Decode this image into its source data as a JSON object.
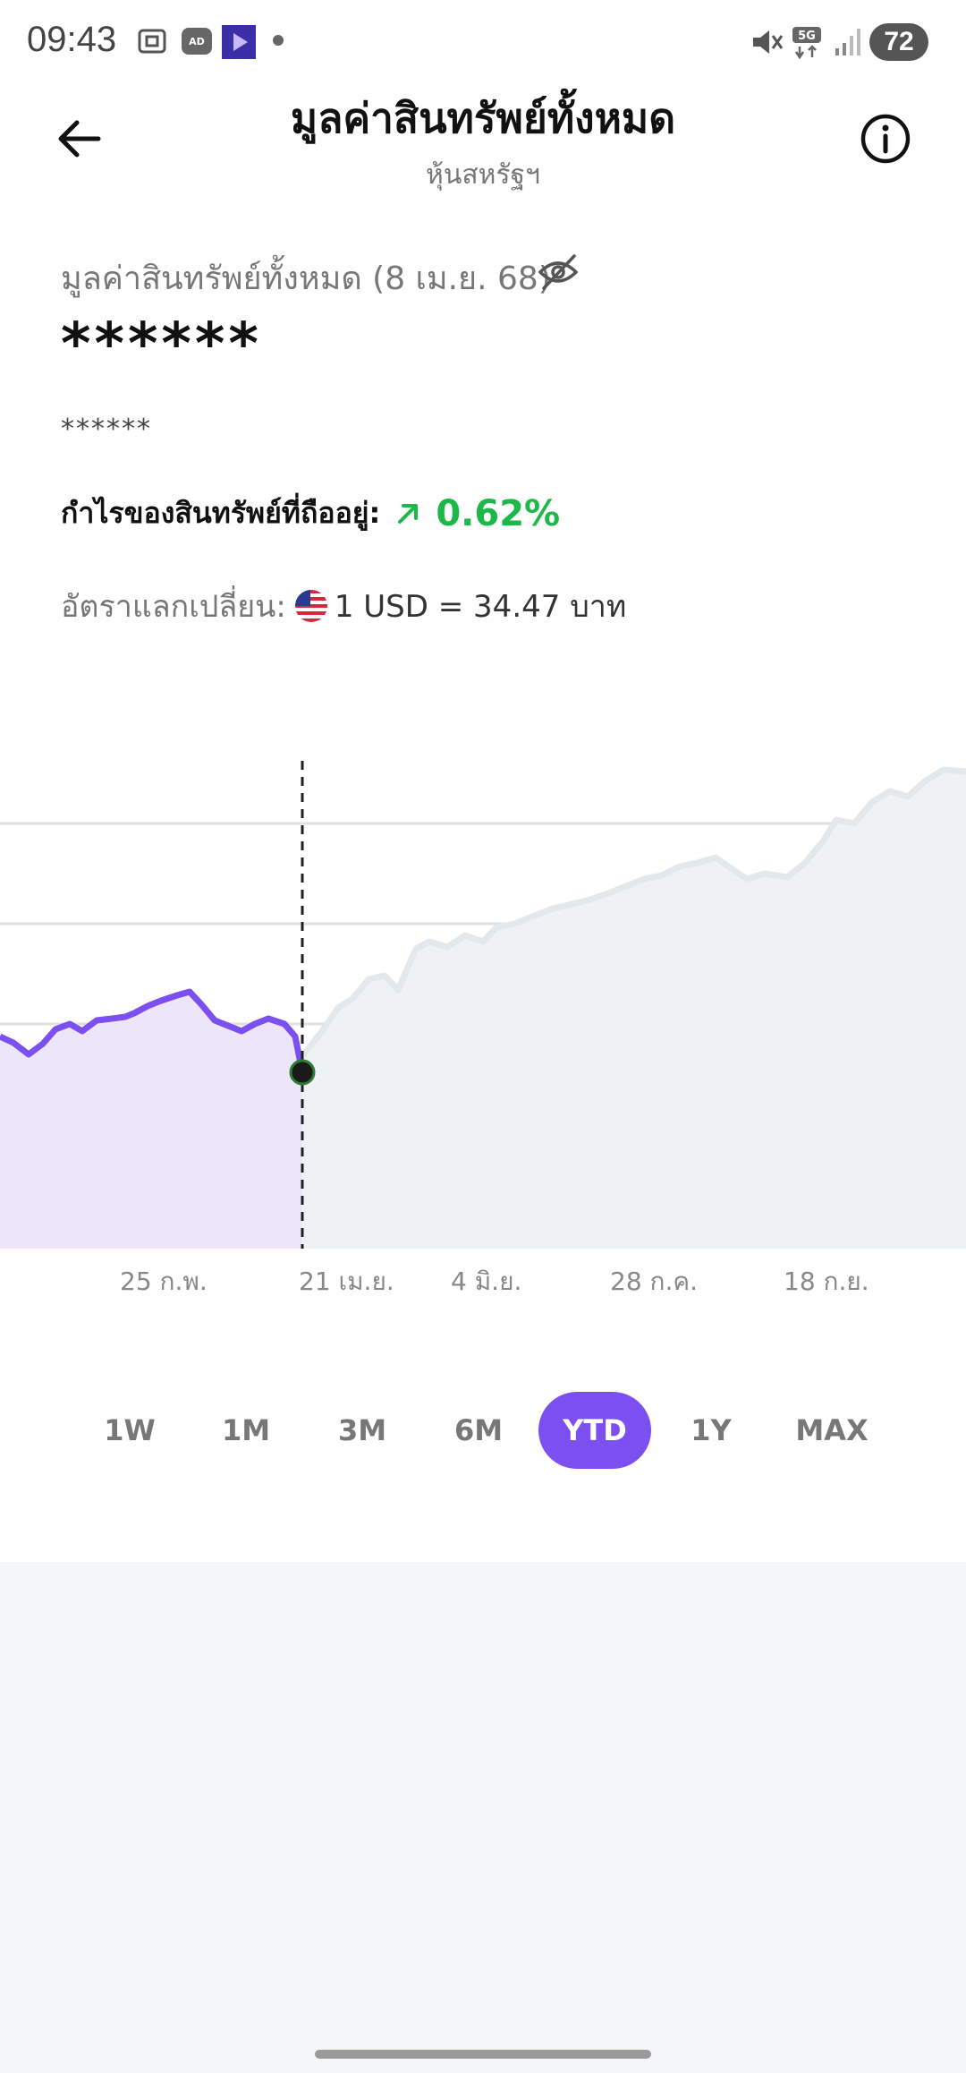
{
  "status_bar": {
    "time": "09:43",
    "battery": "72",
    "network": "5G"
  },
  "header": {
    "title": "มูลค่าสินทรัพย์ทั้งหมด",
    "subtitle": "หุ้นสหรัฐฯ"
  },
  "summary": {
    "total_label": "มูลค่าสินทรัพย์ทั้งหมด (8 เม.ย. 68)",
    "total_value_masked": "******",
    "sub_value_masked": "******",
    "profit_label": "กำไรของสินทรัพย์ที่ถืออยู่:",
    "profit_value": "0.62%",
    "profit_direction": "up",
    "rate_label": "อัตราแลกเปลี่ยน:",
    "rate_value": "1 USD = 34.47 บาท"
  },
  "chart_data": {
    "type": "area",
    "x_tick_labels": [
      "25 ก.พ.",
      "21 เม.ย.",
      "4 มิ.ย.",
      "28 ก.ค.",
      "18 ก.ย."
    ],
    "highlighted_series": {
      "color": "#7b4ff0",
      "fill": "#ede6fb"
    },
    "background_series": {
      "color": "#e3e8ec",
      "fill": "#eef2f5"
    },
    "marker_color": "#222222"
  },
  "ranges": {
    "items": [
      "1W",
      "1M",
      "3M",
      "6M",
      "YTD",
      "1Y",
      "MAX"
    ],
    "active": "YTD"
  }
}
